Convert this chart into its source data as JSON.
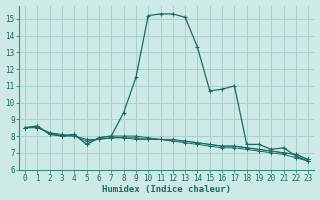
{
  "xlabel": "Humidex (Indice chaleur)",
  "ylabel": "",
  "bg_color": "#ceeae6",
  "grid_color": "#aacfcc",
  "line_color": "#1a6b60",
  "xlim": [
    -0.5,
    23.5
  ],
  "ylim": [
    6,
    15.8
  ],
  "xticks": [
    0,
    1,
    2,
    3,
    4,
    5,
    6,
    7,
    8,
    9,
    10,
    11,
    12,
    13,
    14,
    15,
    16,
    17,
    18,
    19,
    20,
    21,
    22,
    23
  ],
  "yticks": [
    6,
    7,
    8,
    9,
    10,
    11,
    12,
    13,
    14,
    15
  ],
  "series": [
    [
      0,
      8.5
    ],
    [
      1,
      8.6
    ],
    [
      2,
      8.1
    ],
    [
      3,
      8.0
    ],
    [
      4,
      8.1
    ],
    [
      5,
      7.5
    ],
    [
      6,
      7.9
    ],
    [
      7,
      8.0
    ],
    [
      8,
      9.4
    ],
    [
      9,
      11.5
    ],
    [
      10,
      15.2
    ],
    [
      11,
      15.3
    ],
    [
      12,
      15.3
    ],
    [
      13,
      15.1
    ],
    [
      14,
      13.3
    ],
    [
      15,
      10.7
    ],
    [
      16,
      10.8
    ],
    [
      17,
      11.0
    ],
    [
      18,
      7.5
    ],
    [
      19,
      7.5
    ],
    [
      20,
      7.2
    ],
    [
      21,
      7.3
    ],
    [
      22,
      6.8
    ],
    [
      23,
      6.5
    ]
  ],
  "flat_series": [
    [
      [
        0,
        8.5
      ],
      [
        1,
        8.6
      ],
      [
        2,
        8.1
      ],
      [
        3,
        8.0
      ],
      [
        4,
        8.1
      ],
      [
        5,
        7.5
      ],
      [
        6,
        7.9
      ],
      [
        7,
        8.0
      ],
      [
        8,
        8.0
      ],
      [
        9,
        8.0
      ],
      [
        10,
        7.9
      ],
      [
        11,
        7.8
      ],
      [
        12,
        7.8
      ],
      [
        13,
        7.7
      ],
      [
        14,
        7.6
      ],
      [
        15,
        7.5
      ],
      [
        16,
        7.4
      ],
      [
        17,
        7.4
      ],
      [
        18,
        7.3
      ],
      [
        19,
        7.2
      ],
      [
        20,
        7.1
      ],
      [
        21,
        7.0
      ],
      [
        22,
        6.9
      ],
      [
        23,
        6.6
      ]
    ],
    [
      [
        0,
        8.5
      ],
      [
        1,
        8.5
      ],
      [
        2,
        8.2
      ],
      [
        3,
        8.1
      ],
      [
        4,
        8.0
      ],
      [
        5,
        7.8
      ],
      [
        6,
        7.8
      ],
      [
        7,
        7.9
      ],
      [
        8,
        7.9
      ],
      [
        9,
        7.9
      ],
      [
        10,
        7.8
      ],
      [
        11,
        7.8
      ],
      [
        12,
        7.7
      ],
      [
        13,
        7.7
      ],
      [
        14,
        7.6
      ],
      [
        15,
        7.5
      ],
      [
        16,
        7.4
      ],
      [
        17,
        7.4
      ],
      [
        18,
        7.3
      ],
      [
        19,
        7.2
      ],
      [
        20,
        7.1
      ],
      [
        21,
        7.0
      ],
      [
        22,
        6.9
      ],
      [
        23,
        6.6
      ]
    ],
    [
      [
        0,
        8.5
      ],
      [
        1,
        8.5
      ],
      [
        2,
        8.2
      ],
      [
        3,
        8.0
      ],
      [
        4,
        8.0
      ],
      [
        5,
        7.7
      ],
      [
        6,
        7.8
      ],
      [
        7,
        7.9
      ],
      [
        8,
        7.9
      ],
      [
        9,
        7.8
      ],
      [
        10,
        7.8
      ],
      [
        11,
        7.8
      ],
      [
        12,
        7.7
      ],
      [
        13,
        7.6
      ],
      [
        14,
        7.5
      ],
      [
        15,
        7.4
      ],
      [
        16,
        7.3
      ],
      [
        17,
        7.3
      ],
      [
        18,
        7.2
      ],
      [
        19,
        7.1
      ],
      [
        20,
        7.0
      ],
      [
        21,
        6.9
      ],
      [
        22,
        6.7
      ],
      [
        23,
        6.5
      ]
    ]
  ]
}
